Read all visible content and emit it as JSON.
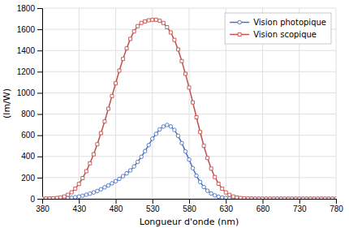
{
  "chart_data": {
    "type": "line",
    "x": [
      380,
      385,
      390,
      395,
      400,
      405,
      410,
      415,
      420,
      425,
      430,
      435,
      440,
      445,
      450,
      455,
      460,
      465,
      470,
      475,
      480,
      485,
      490,
      495,
      500,
      505,
      510,
      515,
      520,
      525,
      530,
      535,
      540,
      545,
      550,
      555,
      560,
      565,
      570,
      575,
      580,
      585,
      590,
      595,
      600,
      605,
      610,
      615,
      620,
      625,
      630,
      635,
      640,
      645,
      650,
      655,
      660,
      665,
      670,
      675,
      680,
      685,
      690,
      695,
      700,
      705,
      710,
      715,
      720,
      725,
      730,
      735,
      740,
      745,
      750,
      755,
      760,
      765,
      770,
      775,
      780
    ],
    "series": [
      {
        "name": "Vision photopique",
        "color": "#4472C4",
        "marker": "circle",
        "values": [
          0.02,
          0.03,
          0.05,
          0.08,
          0.27,
          0.82,
          2.32,
          5.68,
          9.6,
          15.0,
          20.9,
          29.1,
          38.0,
          48.0,
          60.0,
          73.8,
          90.0,
          108.0,
          126.0,
          146.0,
          166.0,
          188.0,
          214.0,
          240.0,
          268.0,
          305.0,
          349.0,
          396.0,
          450.0,
          507.0,
          567.0,
          613.0,
          655.0,
          682.0,
          697.0,
          683.0,
          650.0,
          594.0,
          526.0,
          447.0,
          370.0,
          289.0,
          218.0,
          159.0,
          111.0,
          75.8,
          50.3,
          32.0,
          19.8,
          11.5,
          6.3,
          3.3,
          1.7,
          0.87,
          0.41,
          0.21,
          0.1,
          0.05,
          0.025,
          0.012,
          0.006,
          0.003,
          0.0015,
          0.0008,
          0.0004,
          0.0002,
          0.0001,
          5e-05,
          3e-05,
          1e-05,
          6e-06,
          3e-06,
          2e-06,
          1e-06,
          7e-07,
          3e-07,
          1e-07,
          6e-08,
          3e-08,
          1e-08,
          5e-09
        ]
      },
      {
        "name": "Vision scopique",
        "color": "#C0504D",
        "marker": "square",
        "values": [
          0.6,
          1.2,
          2.2,
          4.0,
          7.3,
          13.0,
          22.0,
          38.0,
          61.0,
          95.0,
          140.0,
          195.0,
          260.0,
          335.0,
          420.0,
          515.0,
          620.0,
          730.0,
          850.0,
          970.0,
          1090.0,
          1210.0,
          1320.0,
          1420.0,
          1510.0,
          1580.0,
          1630.0,
          1660.0,
          1675.0,
          1685.0,
          1690.0,
          1690.0,
          1680.0,
          1660.0,
          1620.0,
          1570.0,
          1500.0,
          1410.0,
          1300.0,
          1180.0,
          1050.0,
          910.0,
          770.0,
          630.0,
          500.0,
          385.0,
          285.0,
          205.0,
          142.0,
          95.0,
          60.0,
          37.0,
          22.0,
          12.0,
          6.5,
          3.3,
          1.6,
          0.8,
          0.4,
          0.18,
          0.09,
          0.04,
          0.02,
          0.01,
          0.005,
          0.002,
          0.001,
          0.0005,
          0.0002,
          0.0001,
          5e-05,
          2e-05,
          1e-05,
          5e-06,
          2e-06,
          1e-06,
          5e-07,
          2e-07,
          8e-08,
          3e-08,
          1e-08
        ]
      }
    ],
    "xlabel": "Longueur d'onde (nm)",
    "ylabel": "(lm/W)",
    "xlim": [
      380,
      780
    ],
    "ylim": [
      0,
      1800
    ],
    "xticks": [
      380,
      430,
      480,
      530,
      580,
      630,
      680,
      730,
      780
    ],
    "yticks": [
      0,
      200,
      400,
      600,
      800,
      1000,
      1200,
      1400,
      1600,
      1800
    ],
    "grid": true,
    "legend": "upper right"
  }
}
